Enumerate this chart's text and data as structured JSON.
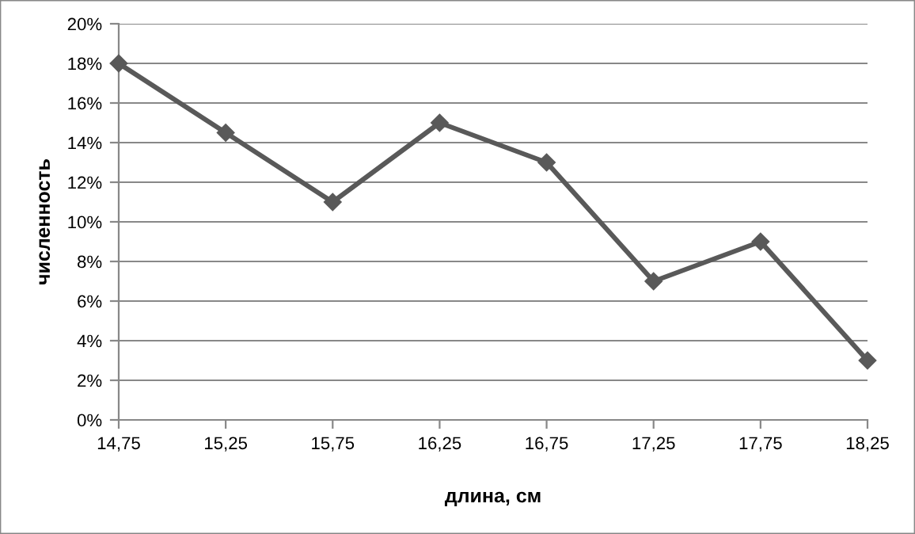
{
  "chart_data": {
    "type": "line",
    "xlabel": "длина, см",
    "ylabel": "численность",
    "categories": [
      "14,75",
      "15,25",
      "15,75",
      "16,25",
      "16,75",
      "17,25",
      "17,75",
      "18,25"
    ],
    "series": [
      {
        "color": "#595959",
        "values": [
          18,
          14.5,
          11,
          15,
          13,
          7,
          9,
          3
        ]
      }
    ],
    "ylim": [
      0,
      20
    ],
    "yticks": [
      {
        "value": 0,
        "label": "0%"
      },
      {
        "value": 2,
        "label": "2%"
      },
      {
        "value": 4,
        "label": "4%"
      },
      {
        "value": 6,
        "label": "6%"
      },
      {
        "value": 8,
        "label": "8%"
      },
      {
        "value": 10,
        "label": "10%"
      },
      {
        "value": 12,
        "label": "12%"
      },
      {
        "value": 14,
        "label": "14%"
      },
      {
        "value": 16,
        "label": "16%"
      },
      {
        "value": 18,
        "label": "18%"
      },
      {
        "value": 20,
        "label": "20%"
      }
    ],
    "grid": "y",
    "marker": "diamond",
    "line_style": "solid",
    "legend": false
  }
}
